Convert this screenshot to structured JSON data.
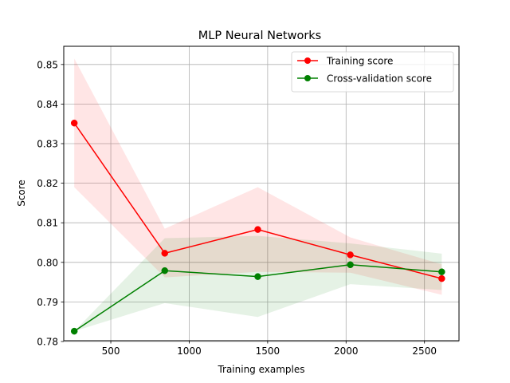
{
  "chart_data": {
    "type": "line",
    "title": "MLP Neural Networks",
    "xlabel": "Training examples",
    "ylabel": "Score",
    "xlim": [
      200,
      2720
    ],
    "ylim": [
      0.7802,
      0.8546
    ],
    "xticks": [
      500,
      1000,
      1500,
      2000,
      2500
    ],
    "yticks": [
      0.78,
      0.79,
      0.8,
      0.81,
      0.82,
      0.83,
      0.84,
      0.85
    ],
    "ytick_labels": [
      "0.78",
      "0.79",
      "0.80",
      "0.81",
      "0.82",
      "0.83",
      "0.84",
      "0.85"
    ],
    "grid": true,
    "legend_position": "top-right",
    "x": [
      267,
      844,
      1437,
      2027,
      2610
    ],
    "series": [
      {
        "name": "Training score",
        "color": "#ff0000",
        "band_color": "#ff0000",
        "values": [
          0.8352,
          0.8023,
          0.8083,
          0.8019,
          0.7959
        ],
        "band_upper": [
          0.8515,
          0.8085,
          0.819,
          0.8063,
          0.7995
        ],
        "band_lower": [
          0.819,
          0.7962,
          0.7976,
          0.7974,
          0.7918
        ]
      },
      {
        "name": "Cross-validation score",
        "color": "#008000",
        "band_color": "#008000",
        "values": [
          0.7826,
          0.7979,
          0.7964,
          0.7994,
          0.7976
        ],
        "band_upper": [
          0.7826,
          0.8061,
          0.8067,
          0.8048,
          0.8022
        ],
        "band_lower": [
          0.7826,
          0.7897,
          0.7862,
          0.7945,
          0.793
        ]
      }
    ]
  }
}
